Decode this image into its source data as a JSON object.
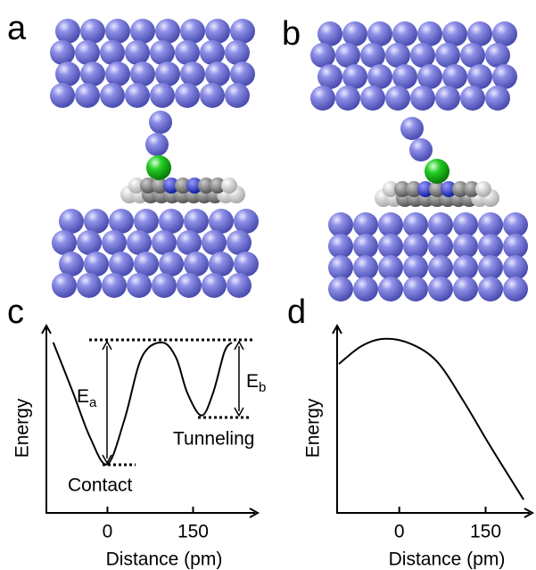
{
  "panel_labels": [
    "a",
    "b",
    "c",
    "d"
  ],
  "chart_data": [
    {
      "type": "line",
      "xlabel": "Distance (pm)",
      "ylabel": "Energy",
      "x": [
        -95,
        -60,
        -30,
        0,
        30,
        60,
        95,
        120,
        140,
        165,
        185,
        205,
        218
      ],
      "series": [
        {
          "color": "#000000",
          "values": [
            9.1,
            6.4,
            4.0,
            2.6,
            5.0,
            8.3,
            9.1,
            8.3,
            6.4,
            5.2,
            6.4,
            8.6,
            9.1
          ]
        }
      ],
      "xlim": [
        -107,
        268
      ],
      "ylim": [
        0,
        10
      ],
      "xticks": [
        0,
        150
      ],
      "annotations": {
        "barrier_a": {
          "text": "E",
          "subscript": "a"
        },
        "barrier_b": {
          "text": "E",
          "subscript": "b"
        },
        "contact": "Contact",
        "tunneling": "Tunneling"
      }
    },
    {
      "type": "line",
      "xlabel": "Distance (pm)",
      "ylabel": "Energy",
      "x": [
        -105,
        -66,
        -28,
        18,
        65,
        111,
        158,
        216
      ],
      "series": [
        {
          "color": "#000000",
          "values": [
            7.95,
            8.9,
            9.29,
            9.05,
            8.1,
            6.0,
            3.57,
            0.71
          ]
        }
      ],
      "xlim": [
        -108,
        236
      ],
      "ylim": [
        0,
        10
      ],
      "xticks": [
        0,
        150
      ]
    }
  ]
}
